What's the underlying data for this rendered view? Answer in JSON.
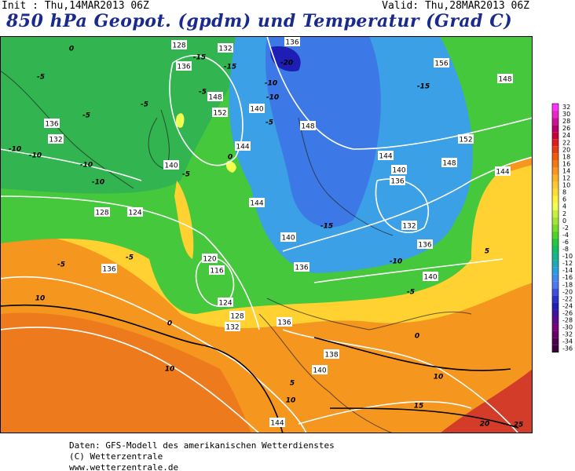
{
  "header": {
    "init": "Init : Thu,14MAR2013 06Z",
    "valid": "Valid: Thu,28MAR2013 06Z",
    "title": "850 hPa Geopot. (gpdm) und Temperatur (Grad C)"
  },
  "map": {
    "geopotential_labels": [
      "128",
      "132",
      "136",
      "136",
      "156",
      "148",
      "148",
      "152",
      "140",
      "136",
      "132",
      "148",
      "144",
      "152",
      "148",
      "144",
      "144",
      "140",
      "136",
      "140",
      "144",
      "128",
      "124",
      "132",
      "140",
      "136",
      "120",
      "116",
      "136",
      "136",
      "140",
      "124",
      "128",
      "132",
      "136",
      "138",
      "140",
      "144"
    ],
    "temperature_labels": [
      "0",
      "-5",
      "-15",
      "-15",
      "-20",
      "-5",
      "-5",
      "-10",
      "-10",
      "-5",
      "-15",
      "-10",
      "-10",
      "-10",
      "-10",
      "-5",
      "0",
      "-15",
      "-10",
      "-5",
      "-5",
      "-5",
      "5",
      "10",
      "0",
      "10",
      "5",
      "10",
      "10",
      "15",
      "20",
      "25",
      "0",
      "-5"
    ]
  },
  "colorbar": {
    "labels": [
      "32",
      "30",
      "28",
      "26",
      "24",
      "22",
      "20",
      "18",
      "16",
      "14",
      "12",
      "10",
      "8",
      "6",
      "4",
      "2",
      "0",
      "-2",
      "-4",
      "-6",
      "-8",
      "-10",
      "-12",
      "-14",
      "-16",
      "-18",
      "-20",
      "-22",
      "-24",
      "-26",
      "-28",
      "-30",
      "-32",
      "-34",
      "-36"
    ],
    "colors": [
      "#ff33ff",
      "#ee22cc",
      "#cc1199",
      "#b4006e",
      "#c8003c",
      "#dc1e1e",
      "#e63c14",
      "#f05a0a",
      "#f57814",
      "#fa961e",
      "#ffb428",
      "#ffc832",
      "#ffdc32",
      "#fff03c",
      "#f0ff50",
      "#c8f03c",
      "#a0e632",
      "#78dc28",
      "#50d228",
      "#28c83c",
      "#14be64",
      "#14b48c",
      "#1eaab4",
      "#28a0dc",
      "#3c8cf0",
      "#5078f0",
      "#3c50dc",
      "#2832c8",
      "#1e1eb4",
      "#3c14a0",
      "#5a0a8c",
      "#780078",
      "#640064",
      "#500050",
      "#3c003c"
    ]
  },
  "footer": {
    "line1": "Daten: GFS-Modell des amerikanischen Wetterdienstes",
    "line2": "(C) Wetterzentrale",
    "line3": "www.wetterzentrale.de"
  }
}
